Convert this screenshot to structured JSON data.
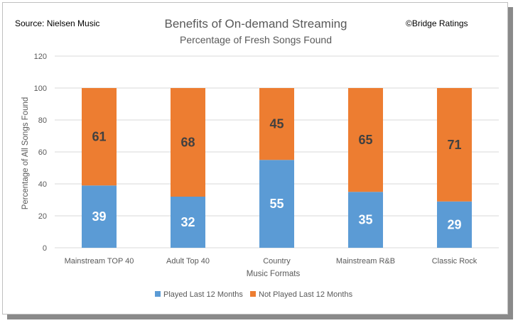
{
  "header": {
    "source": "Source: Nielsen Music",
    "credit": "©Bridge Ratings"
  },
  "chart_data": {
    "type": "bar",
    "stacked": true,
    "title": "Benefits of On-demand Streaming",
    "subtitle": "Percentage of Fresh Songs Found",
    "xlabel": "Music Formats",
    "ylabel": "Percentage of All Songs Found",
    "ylim": [
      0,
      120
    ],
    "yticks": [
      "0",
      "20",
      "40",
      "60",
      "80",
      "100",
      "120"
    ],
    "categories": [
      "Mainstream TOP 40",
      "Adult Top 40",
      "Country",
      "Mainstream R&B",
      "Classic Rock"
    ],
    "series": [
      {
        "name": "Played Last 12 Months",
        "color": "#5b9bd5",
        "label_color": "#ffffff",
        "values": [
          39,
          32,
          55,
          35,
          29
        ]
      },
      {
        "name": "Not Played Last 12 Months",
        "color": "#ed7d31",
        "label_color": "#404040",
        "values": [
          61,
          68,
          45,
          65,
          71
        ]
      }
    ],
    "grid": true,
    "legend_position": "bottom"
  }
}
